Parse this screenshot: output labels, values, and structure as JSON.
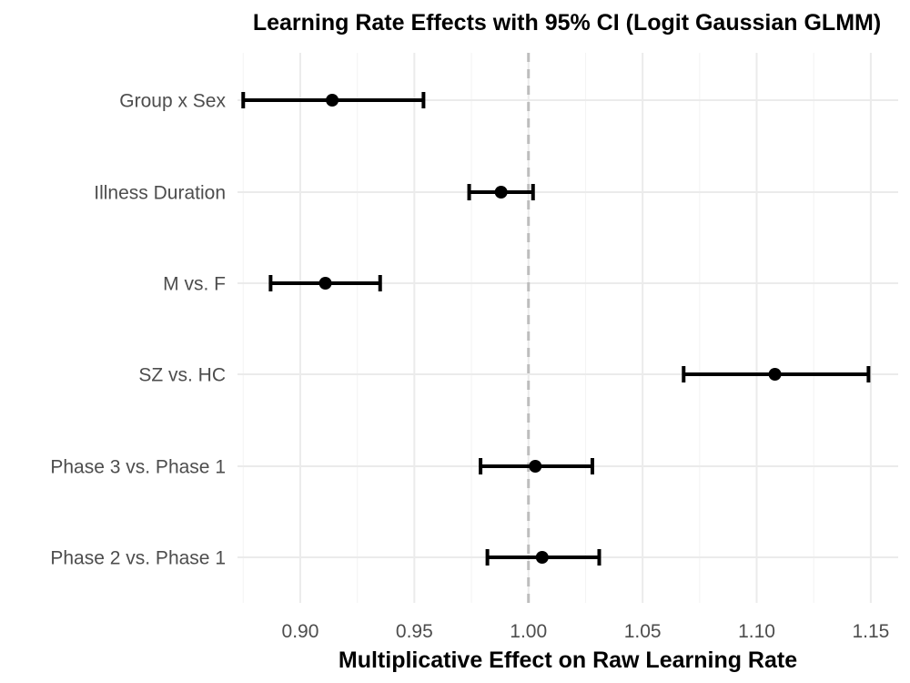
{
  "chart_data": {
    "type": "forest",
    "title": "Learning Rate Effects with 95% CI (Logit Gaussian GLMM)",
    "xlabel": "Multiplicative Effect on Raw Learning Rate",
    "ylabel": "",
    "xlim": [
      0.8725,
      1.162
    ],
    "xticks": [
      0.9,
      0.95,
      1.0,
      1.05,
      1.1,
      1.15
    ],
    "xtick_labels": [
      "0.90",
      "0.95",
      "1.00",
      "1.05",
      "1.10",
      "1.15"
    ],
    "reference_line": 1.0,
    "grid": true,
    "categories": [
      "Group x Sex",
      "Illness Duration",
      "M vs. F",
      "SZ vs. HC",
      "Phase 3 vs. Phase 1",
      "Phase 2 vs. Phase 1"
    ],
    "estimate": [
      0.914,
      0.988,
      0.911,
      1.108,
      1.003,
      1.006
    ],
    "ci_lower": [
      0.875,
      0.974,
      0.887,
      1.068,
      0.979,
      0.982
    ],
    "ci_upper": [
      0.954,
      1.002,
      0.935,
      1.149,
      1.028,
      1.031
    ]
  }
}
